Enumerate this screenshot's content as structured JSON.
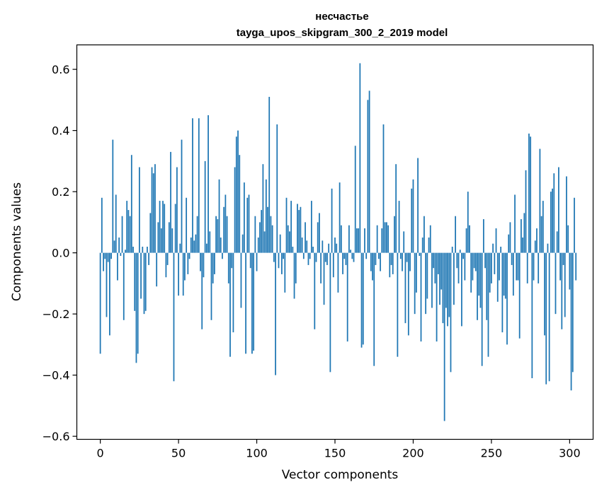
{
  "chart_data": {
    "type": "bar",
    "title": "несчастье",
    "subtitle": "tayga_upos_skipgram_300_2_2019 model",
    "xlabel": "Vector components",
    "ylabel": "Components values",
    "xlim": [
      -15,
      315
    ],
    "ylim": [
      -0.61,
      0.68
    ],
    "xticks": [
      0,
      50,
      100,
      150,
      200,
      250,
      300
    ],
    "yticks": [
      -0.6,
      -0.4,
      -0.2,
      0.0,
      0.2,
      0.4,
      0.6
    ],
    "xtick_labels": [
      "0",
      "50",
      "100",
      "150",
      "200",
      "250",
      "300"
    ],
    "ytick_labels": [
      "−0.6",
      "−0.4",
      "−0.2",
      "0.0",
      "0.2",
      "0.4",
      "0.6"
    ],
    "bar_color": "#1f77b4",
    "values": [
      -0.33,
      0.18,
      -0.06,
      -0.02,
      -0.21,
      -0.03,
      -0.27,
      -0.02,
      0.37,
      0.04,
      0.19,
      -0.09,
      0.05,
      -0.01,
      0.12,
      -0.22,
      0.01,
      0.17,
      0.14,
      0.12,
      0.32,
      0.02,
      -0.19,
      -0.36,
      -0.33,
      0.28,
      -0.15,
      0.02,
      -0.2,
      -0.19,
      0.02,
      -0.04,
      0.13,
      0.28,
      0.26,
      0.29,
      -0.11,
      0.1,
      0.17,
      0.08,
      0.17,
      0.16,
      -0.08,
      -0.04,
      0.1,
      0.33,
      0.08,
      -0.42,
      0.16,
      0.28,
      -0.14,
      0.03,
      0.37,
      -0.14,
      -0.09,
      0.18,
      -0.07,
      -0.02,
      0.05,
      0.44,
      0.04,
      0.06,
      0.12,
      0.44,
      -0.06,
      -0.25,
      -0.08,
      0.3,
      0.03,
      0.45,
      0.07,
      -0.22,
      -0.1,
      -0.07,
      0.12,
      0.11,
      0.24,
      0.05,
      -0.02,
      0.15,
      0.19,
      0.12,
      -0.1,
      -0.34,
      -0.05,
      -0.26,
      0.28,
      0.38,
      0.4,
      0.32,
      -0.18,
      0.06,
      0.23,
      -0.33,
      0.18,
      0.19,
      -0.05,
      -0.33,
      -0.32,
      0.12,
      -0.06,
      0.05,
      0.1,
      0.14,
      0.29,
      0.07,
      0.24,
      0.15,
      0.51,
      0.12,
      0.09,
      -0.03,
      -0.4,
      0.42,
      -0.05,
      0.06,
      -0.07,
      -0.02,
      -0.13,
      0.18,
      0.09,
      0.07,
      0.17,
      0.02,
      -0.15,
      -0.1,
      0.16,
      0.14,
      0.15,
      0.05,
      -0.02,
      0.1,
      0.04,
      -0.04,
      -0.02,
      0.17,
      0.02,
      -0.25,
      -0.03,
      0.1,
      0.13,
      -0.1,
      0.04,
      -0.17,
      -0.03,
      -0.04,
      0.03,
      -0.39,
      0.21,
      -0.08,
      0.05,
      0.03,
      -0.13,
      0.23,
      0.09,
      -0.07,
      -0.02,
      -0.04,
      -0.29,
      0.09,
      0.01,
      -0.02,
      -0.03,
      0.35,
      0.08,
      0.08,
      0.62,
      -0.31,
      -0.3,
      0.08,
      -0.02,
      0.5,
      0.53,
      -0.06,
      -0.09,
      -0.37,
      -0.04,
      0.09,
      -0.02,
      -0.06,
      0.08,
      0.42,
      0.1,
      0.1,
      0.09,
      -0.08,
      -0.04,
      -0.07,
      0.12,
      0.29,
      -0.34,
      0.17,
      -0.02,
      -0.06,
      0.07,
      -0.23,
      -0.03,
      -0.27,
      -0.06,
      0.21,
      0.24,
      -0.2,
      -0.13,
      0.31,
      -0.01,
      -0.29,
      0.05,
      0.12,
      -0.2,
      -0.15,
      0.05,
      0.09,
      -0.18,
      -0.05,
      -0.1,
      -0.29,
      -0.07,
      -0.17,
      -0.12,
      -0.23,
      -0.55,
      -0.18,
      -0.24,
      -0.21,
      -0.39,
      0.02,
      -0.17,
      0.12,
      -0.05,
      -0.1,
      0.01,
      -0.24,
      -0.02,
      -0.09,
      0.08,
      0.2,
      0.09,
      -0.13,
      -0.09,
      -0.05,
      -0.06,
      -0.22,
      -0.14,
      -0.18,
      -0.37,
      0.11,
      -0.05,
      -0.22,
      -0.34,
      -0.13,
      -0.1,
      0.03,
      -0.07,
      0.08,
      -0.16,
      -0.09,
      0.02,
      -0.26,
      -0.14,
      -0.15,
      -0.3,
      0.06,
      0.1,
      -0.04,
      -0.14,
      0.19,
      -0.09,
      -0.09,
      -0.28,
      0.11,
      0.05,
      0.13,
      0.27,
      -0.1,
      0.39,
      0.38,
      -0.41,
      -0.09,
      0.04,
      0.08,
      -0.1,
      0.34,
      0.12,
      0.17,
      -0.27,
      -0.43,
      0.03,
      -0.42,
      0.2,
      0.21,
      0.26,
      -0.2,
      0.07,
      0.28,
      -0.09,
      -0.25,
      -0.04,
      -0.21,
      0.25,
      0.09,
      -0.12,
      -0.45,
      -0.39,
      0.18,
      -0.09
    ]
  }
}
